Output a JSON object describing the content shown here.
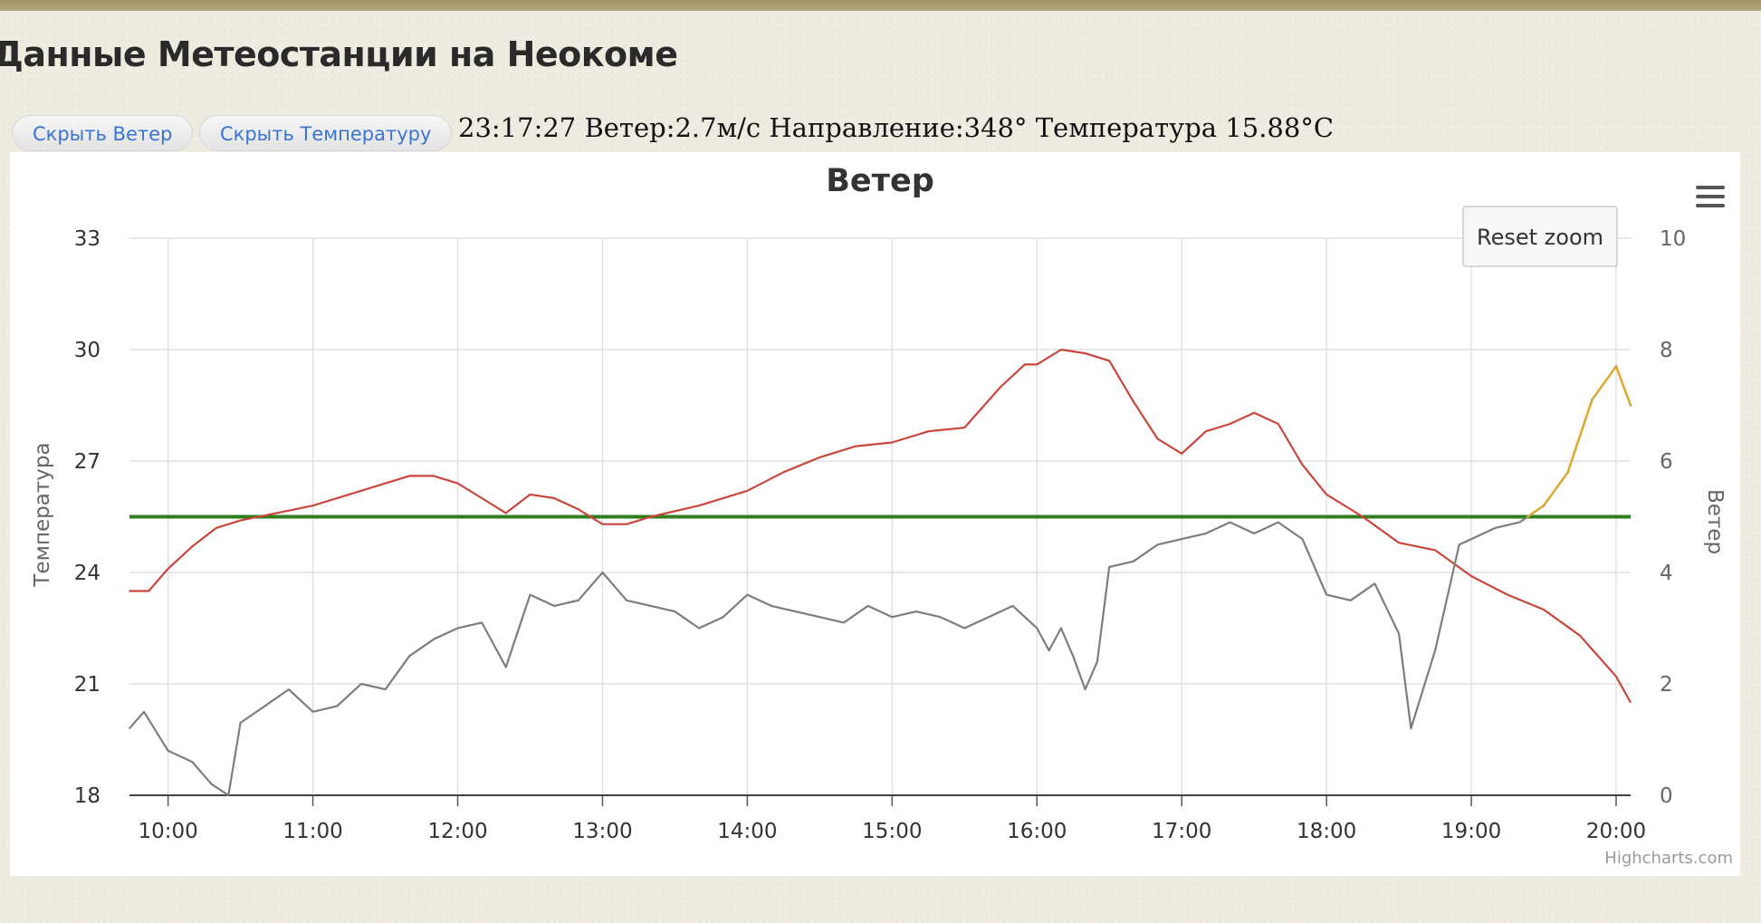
{
  "page": {
    "title": "Данные Метеостанции на Неокоме"
  },
  "controls": {
    "hide_wind": "Скрыть Ветер",
    "hide_temp": "Скрыть Температуру"
  },
  "status": {
    "text": "23:17:27 Ветер:2.7м/с Направление:348° Температура 15.88°C"
  },
  "chart": {
    "reset_zoom": "Reset zoom",
    "credits": "Highcharts.com",
    "menu_icon": "hamburger-menu-icon"
  },
  "chart_data": {
    "type": "line",
    "title": "Ветер",
    "xlabel": "",
    "x_range": [
      "09:44",
      "20:06"
    ],
    "x_ticks": [
      "10:00",
      "11:00",
      "12:00",
      "13:00",
      "14:00",
      "15:00",
      "16:00",
      "17:00",
      "18:00",
      "19:00",
      "20:00"
    ],
    "y_left": {
      "label": "Температура",
      "range": [
        18,
        33
      ],
      "ticks": [
        18,
        21,
        24,
        27,
        30,
        33
      ]
    },
    "y_right": {
      "label": "Ветер",
      "range": [
        0,
        10
      ],
      "ticks": [
        0,
        2,
        4,
        6,
        8,
        10
      ]
    },
    "grid": true,
    "colors": {
      "temperature": "#c9463d",
      "wind": "#7d7d7d",
      "wind_high": "#e3a82b",
      "threshold": "#2f7d1d"
    },
    "threshold": {
      "axis": "right",
      "value": 5
    },
    "wind_color_threshold": 5,
    "series": [
      {
        "axis": "left",
        "color": "#c9463d",
        "x": [
          "09:44",
          "09:52",
          "10:00",
          "10:10",
          "10:20",
          "10:30",
          "10:45",
          "11:00",
          "11:15",
          "11:30",
          "11:40",
          "11:50",
          "12:00",
          "12:10",
          "12:20",
          "12:30",
          "12:40",
          "12:50",
          "13:00",
          "13:10",
          "13:20",
          "13:40",
          "14:00",
          "14:15",
          "14:30",
          "14:45",
          "15:00",
          "15:15",
          "15:30",
          "15:45",
          "15:55",
          "16:00",
          "16:10",
          "16:20",
          "16:30",
          "16:40",
          "16:50",
          "17:00",
          "17:10",
          "17:20",
          "17:30",
          "17:40",
          "17:50",
          "18:00",
          "18:15",
          "18:30",
          "18:45",
          "19:00",
          "19:15",
          "19:30",
          "19:45",
          "20:00",
          "20:06"
        ],
        "y": [
          23.5,
          23.5,
          24.1,
          24.7,
          25.2,
          25.4,
          25.6,
          25.8,
          26.1,
          26.4,
          26.6,
          26.6,
          26.4,
          26.0,
          25.6,
          26.1,
          26.0,
          25.7,
          25.3,
          25.3,
          25.5,
          25.8,
          26.2,
          26.7,
          27.1,
          27.4,
          27.5,
          27.8,
          27.9,
          29.0,
          29.6,
          29.6,
          30.0,
          29.9,
          29.7,
          28.6,
          27.6,
          27.2,
          27.8,
          28.0,
          28.3,
          28.0,
          26.9,
          26.1,
          25.5,
          24.8,
          24.6,
          23.9,
          23.4,
          23.0,
          22.3,
          21.2,
          20.5
        ]
      },
      {
        "axis": "right",
        "color": "#7d7d7d",
        "x": [
          "09:44",
          "09:50",
          "10:00",
          "10:10",
          "10:18",
          "10:25",
          "10:30",
          "10:40",
          "10:50",
          "11:00",
          "11:10",
          "11:20",
          "11:30",
          "11:40",
          "11:50",
          "12:00",
          "12:10",
          "12:20",
          "12:30",
          "12:40",
          "12:50",
          "13:00",
          "13:10",
          "13:20",
          "13:30",
          "13:40",
          "13:50",
          "14:00",
          "14:10",
          "14:20",
          "14:30",
          "14:40",
          "14:50",
          "15:00",
          "15:10",
          "15:20",
          "15:30",
          "15:40",
          "15:50",
          "16:00",
          "16:05",
          "16:10",
          "16:15",
          "16:20",
          "16:25",
          "16:30",
          "16:40",
          "16:50",
          "17:00",
          "17:10",
          "17:20",
          "17:30",
          "17:40",
          "17:50",
          "18:00",
          "18:10",
          "18:20",
          "18:30",
          "18:35",
          "18:45",
          "18:55",
          "19:00",
          "19:10",
          "19:20",
          "19:30",
          "19:40",
          "19:50",
          "20:00",
          "20:06"
        ],
        "y": [
          1.2,
          1.5,
          0.8,
          0.6,
          0.2,
          0.0,
          1.3,
          1.6,
          1.9,
          1.5,
          1.6,
          2.0,
          1.9,
          2.5,
          2.8,
          3.0,
          3.1,
          2.3,
          3.6,
          3.4,
          3.5,
          4.0,
          3.5,
          3.4,
          3.3,
          3.0,
          3.2,
          3.6,
          3.4,
          3.3,
          3.2,
          3.1,
          3.4,
          3.2,
          3.3,
          3.2,
          3.0,
          3.2,
          3.4,
          3.0,
          2.6,
          3.0,
          2.5,
          1.9,
          2.4,
          4.1,
          4.2,
          4.5,
          4.6,
          4.7,
          4.9,
          4.7,
          4.9,
          4.6,
          3.6,
          3.5,
          3.8,
          2.9,
          1.2,
          2.6,
          4.5,
          4.6,
          4.8,
          4.9,
          5.2,
          5.8,
          7.1,
          7.7,
          7.0
        ]
      }
    ]
  }
}
